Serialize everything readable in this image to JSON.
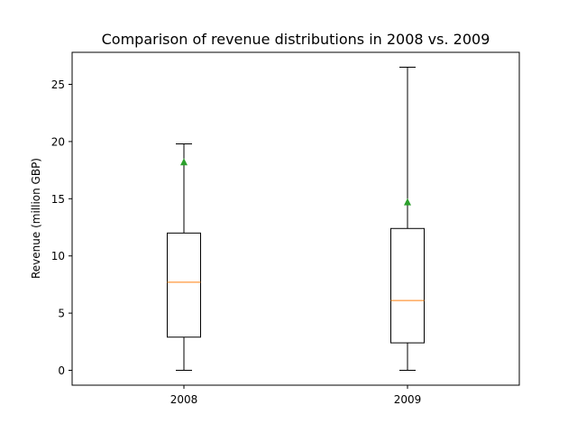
{
  "chart_data": {
    "type": "box",
    "title": "Comparison of revenue distributions in 2008 vs. 2009",
    "xlabel": "",
    "ylabel": "Revenue (million GBP)",
    "ylim": [
      -1.3,
      27.8
    ],
    "yticks": [
      0,
      5,
      10,
      15,
      20,
      25
    ],
    "categories": [
      "2008",
      "2009"
    ],
    "boxes": [
      {
        "label": "2008",
        "whisker_low": 0,
        "q1": 2.9,
        "median": 7.7,
        "q3": 12.0,
        "whisker_high": 19.8,
        "mean": 18.2
      },
      {
        "label": "2009",
        "whisker_low": 0,
        "q1": 2.4,
        "median": 6.1,
        "q3": 12.4,
        "whisker_high": 26.5,
        "mean": 14.7
      }
    ],
    "grid": false,
    "colors": {
      "box": "#000000",
      "median": "#ff7f0e",
      "mean_marker": "#2ca02c"
    }
  }
}
